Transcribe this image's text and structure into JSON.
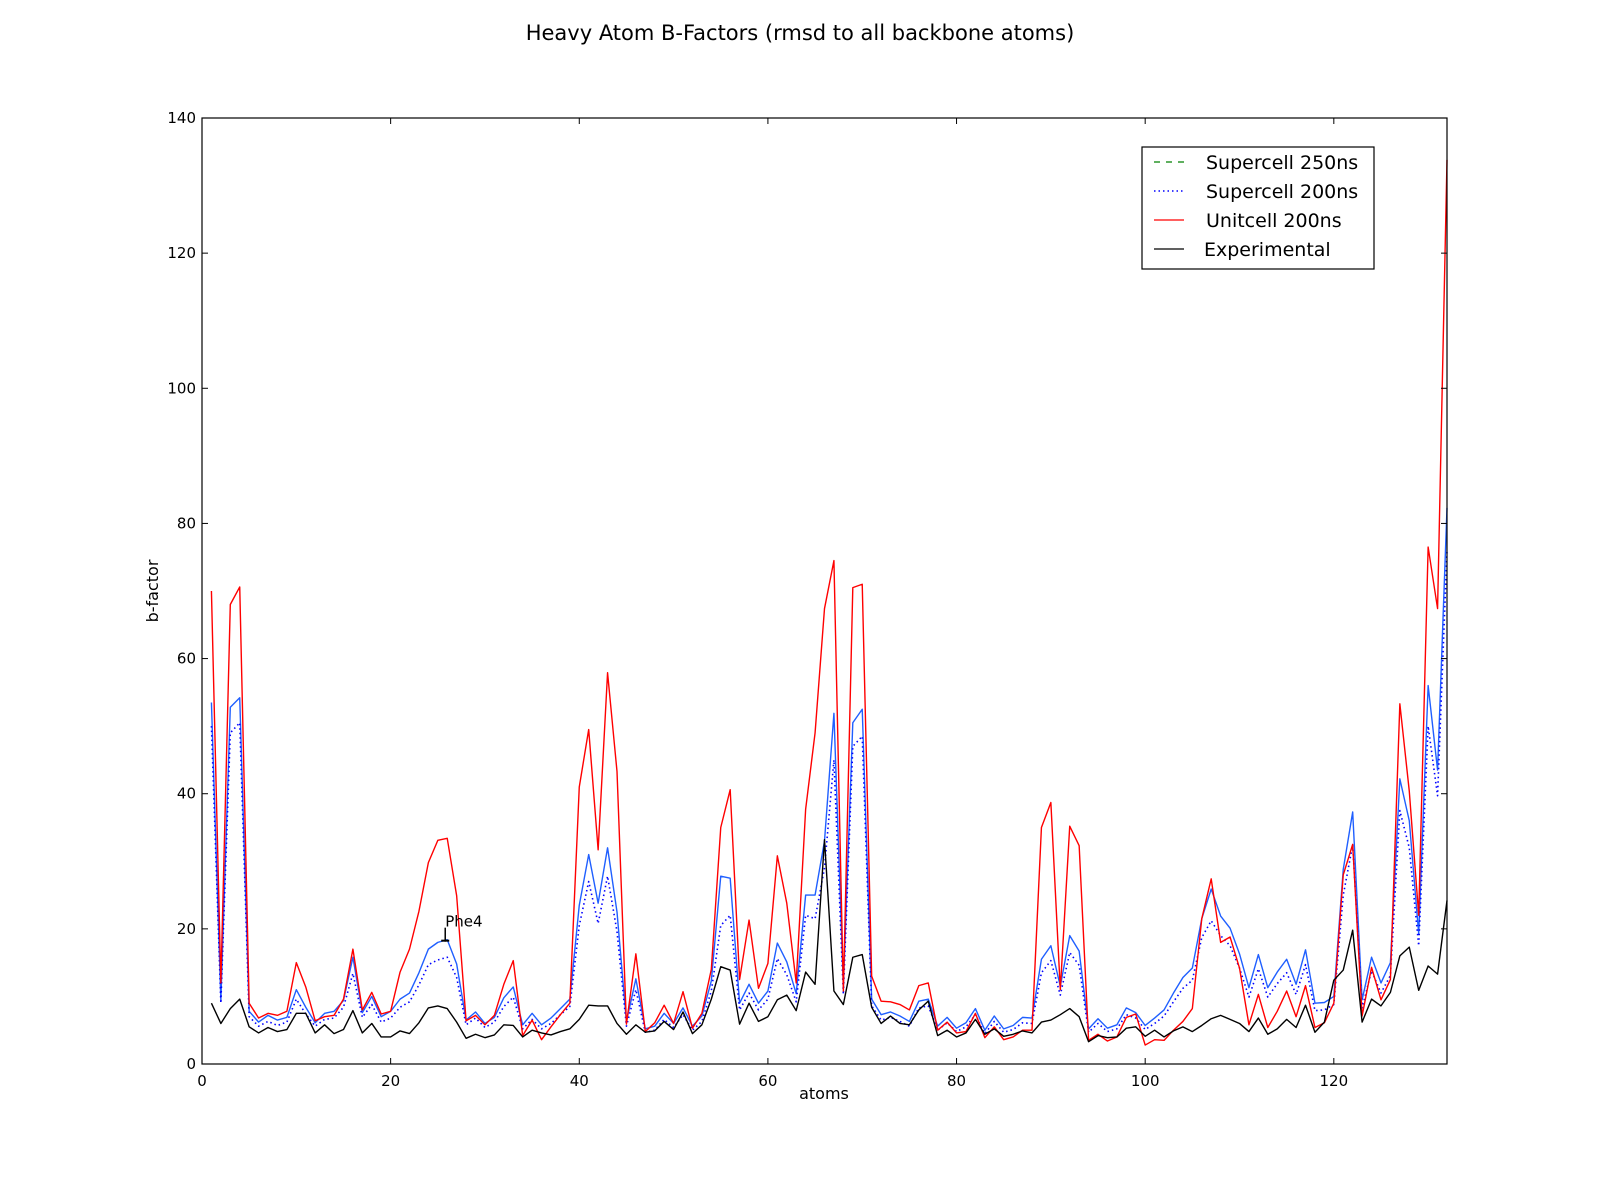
{
  "chart_data": {
    "type": "line",
    "title": "Heavy Atom B-Factors (rmsd to all backbone atoms)",
    "xlabel": "atoms",
    "ylabel": "b-factor",
    "xlim": [
      0,
      132
    ],
    "ylim": [
      0,
      140
    ],
    "xticks": [
      0,
      20,
      40,
      60,
      80,
      100,
      120
    ],
    "yticks": [
      0,
      20,
      40,
      60,
      80,
      100,
      120,
      140
    ],
    "grid": false,
    "legend_position": "top-right",
    "x": [
      1,
      2,
      3,
      4,
      5,
      6,
      7,
      8,
      9,
      10,
      11,
      12,
      13,
      14,
      15,
      16,
      17,
      18,
      19,
      20,
      21,
      22,
      23,
      24,
      25,
      26,
      27,
      28,
      29,
      30,
      31,
      32,
      33,
      34,
      35,
      36,
      37,
      38,
      39,
      40,
      41,
      42,
      43,
      44,
      45,
      46,
      47,
      48,
      49,
      50,
      51,
      52,
      53,
      54,
      55,
      56,
      57,
      58,
      59,
      60,
      61,
      62,
      63,
      64,
      65,
      66,
      67,
      68,
      69,
      70,
      71,
      72,
      73,
      74,
      75,
      76,
      77,
      78,
      79,
      80,
      81,
      82,
      83,
      84,
      85,
      86,
      87,
      88,
      89,
      90,
      91,
      92,
      93,
      94,
      95,
      96,
      97,
      98,
      99,
      100,
      101,
      102,
      103,
      104,
      105,
      106,
      107,
      108,
      109,
      110,
      111,
      112,
      113,
      114,
      115,
      116,
      117,
      118,
      119,
      120,
      121,
      122,
      123,
      124,
      125,
      126,
      127,
      128,
      129,
      130,
      131,
      132
    ],
    "series": [
      {
        "name": "Supercell 250ns",
        "color": "#1f5fff",
        "style": "solid",
        "values": [
          53.5,
          9.5,
          52.8,
          54.2,
          7.8,
          6.2,
          7.2,
          6.5,
          6.9,
          11.0,
          8.4,
          6.1,
          7.5,
          7.8,
          9.4,
          15.8,
          7.6,
          10.0,
          7.0,
          7.8,
          9.6,
          10.5,
          13.5,
          17.0,
          18.0,
          18.4,
          14.8,
          6.5,
          7.7,
          6.0,
          6.9,
          9.8,
          11.4,
          5.8,
          7.5,
          5.8,
          6.8,
          8.2,
          9.6,
          23.5,
          31.0,
          23.8,
          32.0,
          22.5,
          6.3,
          12.6,
          5.2,
          5.6,
          7.5,
          6.0,
          8.3,
          5.6,
          7.1,
          12.3,
          27.8,
          27.5,
          9.0,
          11.8,
          9.0,
          10.8,
          17.9,
          15.1,
          10.4,
          25.0,
          25.0,
          33.0,
          51.9,
          11.5,
          50.5,
          52.5,
          9.6,
          7.3,
          7.7,
          7.1,
          6.3,
          9.3,
          9.6,
          5.6,
          6.9,
          5.3,
          6.1,
          8.2,
          5.0,
          7.1,
          5.2,
          5.7,
          6.9,
          6.8,
          15.5,
          17.5,
          11.5,
          19.0,
          16.7,
          5.2,
          6.7,
          5.3,
          5.8,
          8.3,
          7.6,
          5.7,
          6.8,
          8.0,
          10.5,
          12.8,
          14.2,
          21.5,
          25.9,
          21.9,
          20.1,
          16.3,
          11.3,
          16.2,
          11.3,
          13.6,
          15.5,
          11.8,
          16.9,
          9.0,
          9.1,
          10.0,
          28.8,
          37.3,
          9.5,
          15.8,
          12.0,
          15.0,
          42.2,
          36.0,
          19.3,
          56.0,
          43.5,
          82.3
        ]
      },
      {
        "name": "Supercell 200ns",
        "color": "#0000ff",
        "style": "dotted",
        "values": [
          50.0,
          9.0,
          49.0,
          50.5,
          7.0,
          5.6,
          6.3,
          5.7,
          6.2,
          9.6,
          7.4,
          5.6,
          6.6,
          6.8,
          8.4,
          13.4,
          6.9,
          8.8,
          6.2,
          6.8,
          8.4,
          9.2,
          11.7,
          14.7,
          15.4,
          15.8,
          12.8,
          5.8,
          6.8,
          5.4,
          6.2,
          8.5,
          9.9,
          5.2,
          6.6,
          5.2,
          6.0,
          7.3,
          8.5,
          20.5,
          27.0,
          20.8,
          27.8,
          19.6,
          5.6,
          11.0,
          4.7,
          5.0,
          6.6,
          5.4,
          7.3,
          5.0,
          6.3,
          10.8,
          20.5,
          22.0,
          8.0,
          10.5,
          8.0,
          9.6,
          15.6,
          13.2,
          9.2,
          22.0,
          21.5,
          29.0,
          45.0,
          10.3,
          47.0,
          48.5,
          8.6,
          6.5,
          6.9,
          6.3,
          5.6,
          8.3,
          8.6,
          5.0,
          6.1,
          4.8,
          5.5,
          7.3,
          4.5,
          6.3,
          4.7,
          5.1,
          6.1,
          6.0,
          13.5,
          15.3,
          10.2,
          16.5,
          14.6,
          4.7,
          6.0,
          4.8,
          5.2,
          7.3,
          6.8,
          5.1,
          6.0,
          7.1,
          9.2,
          11.2,
          12.4,
          18.7,
          21.2,
          19.0,
          17.5,
          14.2,
          9.9,
          14.1,
          9.9,
          11.9,
          13.5,
          10.3,
          14.7,
          7.9,
          8.0,
          8.8,
          25.0,
          32.4,
          8.3,
          13.8,
          10.5,
          13.1,
          37.5,
          32.0,
          17.5,
          50.0,
          39.7,
          76.0
        ]
      },
      {
        "name": "Unitcell 200ns",
        "color": "#ff0000",
        "style": "solid",
        "values": [
          70.0,
          12.0,
          68.0,
          70.6,
          9.0,
          6.8,
          7.5,
          7.2,
          7.8,
          15.0,
          11.4,
          6.4,
          7.0,
          7.2,
          9.6,
          17.0,
          8.0,
          10.6,
          7.4,
          7.8,
          13.6,
          17.0,
          22.6,
          29.8,
          33.1,
          33.4,
          24.9,
          6.4,
          7.2,
          5.8,
          7.2,
          11.8,
          15.3,
          4.2,
          6.5,
          3.6,
          5.5,
          7.3,
          9.0,
          41.0,
          49.5,
          31.7,
          57.9,
          43.3,
          5.9,
          16.3,
          4.8,
          6.1,
          8.7,
          6.0,
          10.7,
          5.3,
          7.5,
          14.0,
          35.0,
          40.6,
          12.5,
          21.3,
          11.2,
          14.9,
          30.8,
          23.8,
          12.0,
          37.7,
          49.0,
          67.4,
          74.5,
          10.8,
          70.5,
          71.0,
          13.0,
          9.3,
          9.2,
          8.8,
          8.0,
          11.6,
          12.0,
          5.0,
          6.2,
          4.6,
          4.8,
          7.5,
          3.9,
          5.5,
          3.6,
          4.0,
          5.0,
          5.0,
          35.0,
          38.7,
          11.0,
          35.2,
          32.3,
          3.5,
          4.4,
          3.4,
          4.0,
          6.9,
          7.4,
          2.8,
          3.6,
          3.5,
          5.0,
          6.3,
          8.2,
          21.5,
          27.4,
          18.0,
          18.8,
          14.2,
          5.8,
          10.3,
          5.4,
          7.8,
          10.8,
          7.0,
          11.6,
          5.4,
          6.1,
          9.0,
          28.0,
          32.5,
          7.1,
          14.3,
          9.5,
          12.5,
          53.3,
          40.4,
          22.0,
          76.5,
          67.4,
          133.8
        ]
      },
      {
        "name": "Experimental",
        "color": "#000000",
        "style": "solid",
        "values": [
          9.0,
          6.0,
          8.2,
          9.6,
          5.5,
          4.6,
          5.4,
          4.8,
          5.1,
          7.5,
          7.5,
          4.6,
          5.8,
          4.5,
          5.1,
          7.9,
          4.6,
          6.0,
          4.0,
          4.0,
          4.9,
          4.5,
          6.1,
          8.3,
          8.6,
          8.2,
          6.2,
          3.8,
          4.4,
          3.9,
          4.3,
          5.8,
          5.7,
          4.0,
          5.0,
          4.6,
          4.3,
          4.8,
          5.2,
          6.6,
          8.7,
          8.6,
          8.6,
          6.0,
          4.4,
          5.8,
          4.7,
          4.9,
          6.3,
          5.1,
          7.7,
          4.5,
          5.8,
          9.6,
          14.4,
          13.9,
          5.9,
          9.0,
          6.3,
          7.0,
          9.5,
          10.2,
          7.9,
          13.6,
          11.8,
          33.2,
          10.8,
          8.8,
          15.8,
          16.2,
          8.4,
          6.0,
          7.1,
          6.0,
          5.8,
          8.0,
          9.3,
          4.2,
          5.0,
          4.0,
          4.6,
          6.6,
          4.4,
          5.2,
          4.1,
          4.4,
          4.9,
          4.6,
          6.2,
          6.5,
          7.3,
          8.2,
          7.0,
          3.3,
          4.2,
          3.9,
          4.0,
          5.3,
          5.5,
          4.1,
          5.0,
          4.0,
          4.9,
          5.5,
          4.8,
          5.7,
          6.7,
          7.2,
          6.6,
          6.0,
          4.8,
          6.8,
          4.4,
          5.2,
          6.6,
          5.4,
          8.7,
          4.7,
          6.2,
          12.4,
          13.9,
          19.8,
          6.2,
          9.6,
          8.6,
          10.6,
          16.0,
          17.3,
          10.9,
          14.5,
          13.3,
          24.2
        ]
      }
    ],
    "annotations": [
      {
        "text": "Phe4",
        "x": 26,
        "y": 18.4
      }
    ]
  }
}
